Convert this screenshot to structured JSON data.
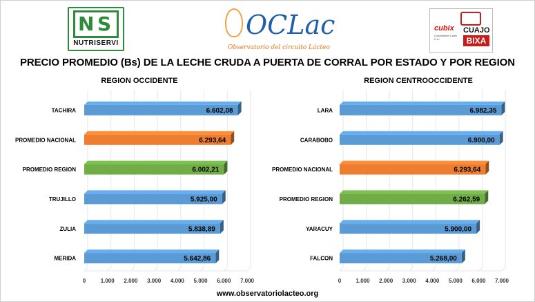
{
  "logos": {
    "nutriservi": {
      "word": "NUTRISERVI"
    },
    "oclac": {
      "name": "OCLac",
      "tagline": "Observatorio del circuito Lácteo"
    },
    "cubix": {
      "brand": "cubix",
      "company": "Corporación Cubix C.A.",
      "cuajo": "CUAJO",
      "bixa": "BIXA"
    }
  },
  "title": "PRECIO PROMEDIO (Bs) DE LA LECHE CRUDA A PUERTA DE CORRAL POR ESTADO Y POR REGION",
  "footer": "www.observatoriolacteo.org",
  "colors": {
    "state": "#5b9bd5",
    "national": "#ed7d31",
    "region": "#70ad47",
    "grid": "#e6e6e6"
  },
  "chart_data": [
    {
      "type": "bar",
      "orientation": "horizontal",
      "title": "REGION OCCIDENTE",
      "categories": [
        "TACHIRA",
        "PROMEDIO NACIONAL",
        "PROMEDIO REGION",
        "TRUJILLO",
        "ZULIA",
        "MERIDA"
      ],
      "values": [
        6602.08,
        6293.64,
        6002.21,
        5925.0,
        5838.89,
        5642.86
      ],
      "labels": [
        "6.602,08",
        "6.293,64",
        "6.002,21",
        "5.925,00",
        "5.838,89",
        "5.642,86"
      ],
      "bar_kind": [
        "state",
        "national",
        "region",
        "state",
        "state",
        "state"
      ],
      "xlim": [
        0,
        7000
      ],
      "ticks": [
        0,
        1000,
        2000,
        3000,
        4000,
        5000,
        6000,
        7000
      ],
      "tick_labels": [
        "0",
        "1.000",
        "2.000",
        "3.000",
        "4.000",
        "5.000",
        "6.000",
        "7.000"
      ],
      "grid": true
    },
    {
      "type": "bar",
      "orientation": "horizontal",
      "title": "REGION CENTROOCCIDENTE",
      "categories": [
        "LARA",
        "CARABOBO",
        "PROMEDIO NACIONAL",
        "PROMEDIO REGION",
        "YARACUY",
        "FALCON"
      ],
      "values": [
        6982.35,
        6900.0,
        6293.64,
        6262.59,
        5900.0,
        5268.0
      ],
      "labels": [
        "6.982,35",
        "6.900,00",
        "6.293,64",
        "6.262,59",
        "5.900,00",
        "5.268,00"
      ],
      "bar_kind": [
        "state",
        "state",
        "national",
        "region",
        "state",
        "state"
      ],
      "xlim": [
        0,
        7000
      ],
      "ticks": [
        0,
        1000,
        2000,
        3000,
        4000,
        5000,
        6000,
        7000
      ],
      "tick_labels": [
        "0",
        "1.000",
        "2.000",
        "3.000",
        "4.000",
        "5.000",
        "6.000",
        "7.000"
      ],
      "grid": true
    }
  ]
}
